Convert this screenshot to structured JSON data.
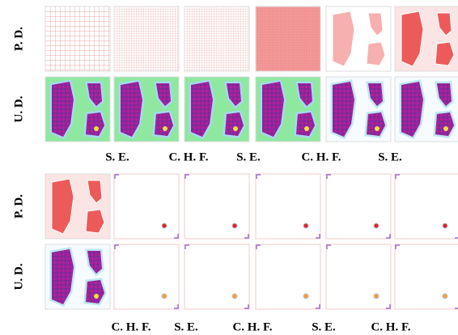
{
  "blocks": [
    {
      "row_labels": [
        "P. D.",
        "U. D."
      ],
      "captions": [
        "S. E.",
        "C. H. F.",
        "S. E.",
        "C. H. F.",
        "S. E."
      ]
    },
    {
      "row_labels": [
        "P. D.",
        "U. D."
      ],
      "captions": [
        "C. H. F.",
        "S. E.",
        "C. H. F.",
        "S. E.",
        "C. H. F."
      ]
    }
  ]
}
